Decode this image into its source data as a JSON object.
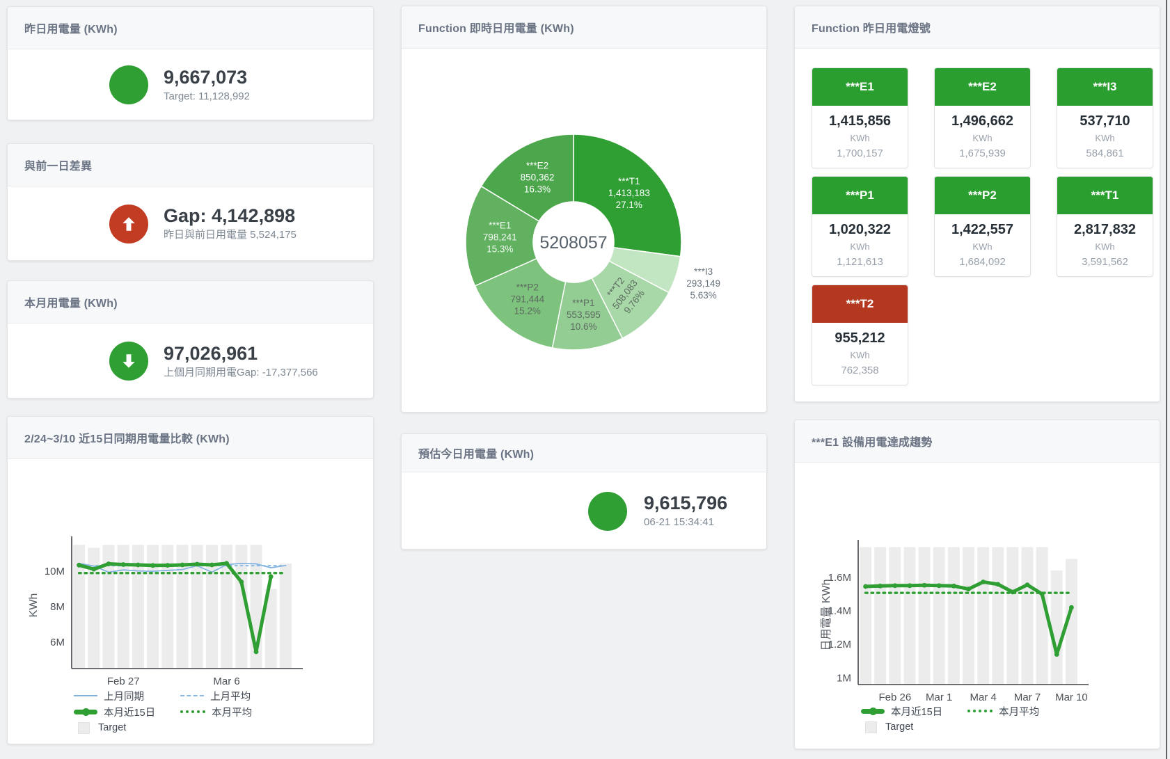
{
  "page": {
    "bg": "#eff1f3"
  },
  "colors": {
    "green": "#2f9e33",
    "red": "#c23b23",
    "card_green": "#2a9e2e",
    "card_red": "#b4381f",
    "bar": "#ececec",
    "blue": "#7fb2e0",
    "blue_light": "#8ab8e4"
  },
  "panels": {
    "yesterday": {
      "title": "昨日用電量 (KWh)",
      "value": "9,667,073",
      "subtext": "Target: 11,128,992"
    },
    "gap": {
      "title": "與前一日差異",
      "value": "Gap: 4,142,898",
      "subtext": "昨日與前日用電量 5,524,175"
    },
    "month": {
      "title": "本月用電量 (KWh)",
      "value": "97,026,961",
      "subtext": "上個月同期用電Gap: -17,377,566"
    },
    "donut": {
      "title": "Function 即時日用電量 (KWh)"
    },
    "estimate": {
      "title": "預估今日用電量 (KWh)",
      "value": "9,615,796",
      "subtext": "06-21 15:34:41"
    },
    "lights": {
      "title": "Function 昨日用電燈號",
      "cards": [
        {
          "label": "***E1",
          "value": "1,415,856",
          "unit": "KWh",
          "target": "1,700,157",
          "status": "green"
        },
        {
          "label": "***E2",
          "value": "1,496,662",
          "unit": "KWh",
          "target": "1,675,939",
          "status": "green"
        },
        {
          "label": "***I3",
          "value": "537,710",
          "unit": "KWh",
          "target": "584,861",
          "status": "green"
        },
        {
          "label": "***P1",
          "value": "1,020,322",
          "unit": "KWh",
          "target": "1,121,613",
          "status": "green"
        },
        {
          "label": "***P2",
          "value": "1,422,557",
          "unit": "KWh",
          "target": "1,684,092",
          "status": "green"
        },
        {
          "label": "***T1",
          "value": "2,817,832",
          "unit": "KWh",
          "target": "3,591,562",
          "status": "green"
        },
        {
          "label": "***T2",
          "value": "955,212",
          "unit": "KWh",
          "target": "762,358",
          "status": "red"
        }
      ]
    },
    "compare": {
      "title": "2/24~3/10 近15日同期用電量比較 (KWh)"
    },
    "trend": {
      "title": "***E1 設備用電達成趨勢"
    }
  },
  "chart_data": [
    {
      "type": "pie",
      "title": "Function 即時日用電量 (KWh)",
      "center_label": "5208057",
      "slices": [
        {
          "name": "***T1",
          "value": 1413183,
          "value_label": "1,413,183",
          "pct": "27.1%",
          "color": "#2f9e33",
          "text": "#ffffff"
        },
        {
          "name": "***I3",
          "value": 293149,
          "value_label": "293,149",
          "pct": "5.63%",
          "color": "#c2e5c2",
          "text": "#6a737d",
          "outside": true
        },
        {
          "name": "***T2",
          "value": 508083,
          "value_label": "508,083",
          "pct": "9.76%",
          "color": "#a8d8a8",
          "text": "#5d6a60",
          "rotate": -52
        },
        {
          "name": "***P1",
          "value": 553595,
          "value_label": "553,595",
          "pct": "10.6%",
          "color": "#93cd93",
          "text": "#5d6a60"
        },
        {
          "name": "***P2",
          "value": 791444,
          "value_label": "791,444",
          "pct": "15.2%",
          "color": "#7dc27d",
          "text": "#5d6a60"
        },
        {
          "name": "***E1",
          "value": 798241,
          "value_label": "798,241",
          "pct": "15.3%",
          "color": "#61b161",
          "text": "#f2f7f2"
        },
        {
          "name": "***E2",
          "value": 850362,
          "value_label": "850,362",
          "pct": "16.3%",
          "color": "#4ca74c",
          "text": "#ffffff"
        }
      ]
    },
    {
      "type": "line",
      "title": "2/24~3/10 近15日同期用電量比較 (KWh)",
      "ylabel": "KWh",
      "unit": "M",
      "ylim": [
        4.5,
        11.66
      ],
      "yticks": [
        {
          "v": 6,
          "label": "6M"
        },
        {
          "v": 8,
          "label": "8M"
        },
        {
          "v": 10,
          "label": "10M"
        }
      ],
      "n": 15,
      "xticks": [
        {
          "i": 3,
          "label": "Feb 27"
        },
        {
          "i": 10,
          "label": "Mar 6"
        }
      ],
      "target": {
        "name": "Target",
        "values": [
          11.5,
          11.33,
          11.5,
          11.5,
          11.5,
          11.5,
          11.5,
          11.5,
          11.5,
          11.5,
          11.5,
          11.5,
          11.5,
          9.0,
          10.44
        ]
      },
      "series": [
        {
          "name": "上月同期",
          "style": "blue-solid",
          "values": [
            10.45,
            10.3,
            9.95,
            10.08,
            10.02,
            10.0,
            10.05,
            10.1,
            10.32,
            9.95,
            10.38,
            10.45,
            10.42,
            10.2,
            10.33
          ]
        },
        {
          "name": "上月平均",
          "style": "blue-dashed",
          "values": [
            10.32,
            10.32,
            10.32,
            10.32,
            10.32,
            10.32,
            10.32,
            10.32,
            10.32,
            10.32,
            10.32,
            10.32,
            10.32,
            10.32,
            10.32
          ]
        },
        {
          "name": "本月近15日",
          "style": "green-thick",
          "values": [
            10.35,
            10.12,
            10.42,
            10.38,
            10.36,
            10.33,
            10.34,
            10.36,
            10.4,
            10.36,
            10.45,
            9.4,
            5.45,
            9.7,
            null
          ]
        },
        {
          "name": "本月平均",
          "style": "green-dotted",
          "values": [
            9.9,
            9.9,
            9.9,
            9.9,
            9.9,
            9.9,
            9.9,
            9.9,
            9.9,
            9.9,
            9.9,
            9.9,
            9.9,
            9.9,
            9.9
          ]
        }
      ],
      "legend": [
        [
          "blue-solid",
          "上月同期"
        ],
        [
          "blue-dashed",
          "上月平均"
        ],
        [
          "green-thick",
          "本月近15日"
        ],
        [
          "green-dotted",
          "本月平均"
        ],
        [
          "target",
          "Target"
        ]
      ]
    },
    {
      "type": "line",
      "title": "***E1 設備用電達成趨勢",
      "ylabel": "日用電量 KWh",
      "unit": "M",
      "ylim": [
        0.96,
        1.79
      ],
      "yticks": [
        {
          "v": 1,
          "label": "1M"
        },
        {
          "v": 1.2,
          "label": "1.2M"
        },
        {
          "v": 1.4,
          "label": "1.4M"
        },
        {
          "v": 1.6,
          "label": "1.6M"
        }
      ],
      "n": 15,
      "xticks": [
        {
          "i": 2,
          "label": "Feb 26"
        },
        {
          "i": 5,
          "label": "Mar 1"
        },
        {
          "i": 8,
          "label": "Mar 4"
        },
        {
          "i": 11,
          "label": "Mar 7"
        },
        {
          "i": 14,
          "label": "Mar 10"
        }
      ],
      "target": {
        "name": "Target",
        "values": [
          1.78,
          1.78,
          1.78,
          1.78,
          1.78,
          1.78,
          1.78,
          1.78,
          1.78,
          1.78,
          1.78,
          1.78,
          1.78,
          1.64,
          1.71
        ]
      },
      "series": [
        {
          "name": "本月近15日",
          "style": "green-thick",
          "values": [
            1.545,
            1.548,
            1.55,
            1.55,
            1.552,
            1.55,
            1.548,
            1.53,
            1.572,
            1.558,
            1.512,
            1.555,
            1.5,
            1.14,
            1.42
          ]
        },
        {
          "name": "本月平均",
          "style": "green-dotted",
          "values": [
            1.507,
            1.507,
            1.507,
            1.507,
            1.507,
            1.507,
            1.507,
            1.507,
            1.507,
            1.507,
            1.507,
            1.507,
            1.507,
            1.507,
            1.507
          ]
        }
      ],
      "legend": [
        [
          "green-thick",
          "本月近15日"
        ],
        [
          "green-dotted",
          "本月平均"
        ],
        [
          "target",
          "Target"
        ]
      ]
    }
  ]
}
